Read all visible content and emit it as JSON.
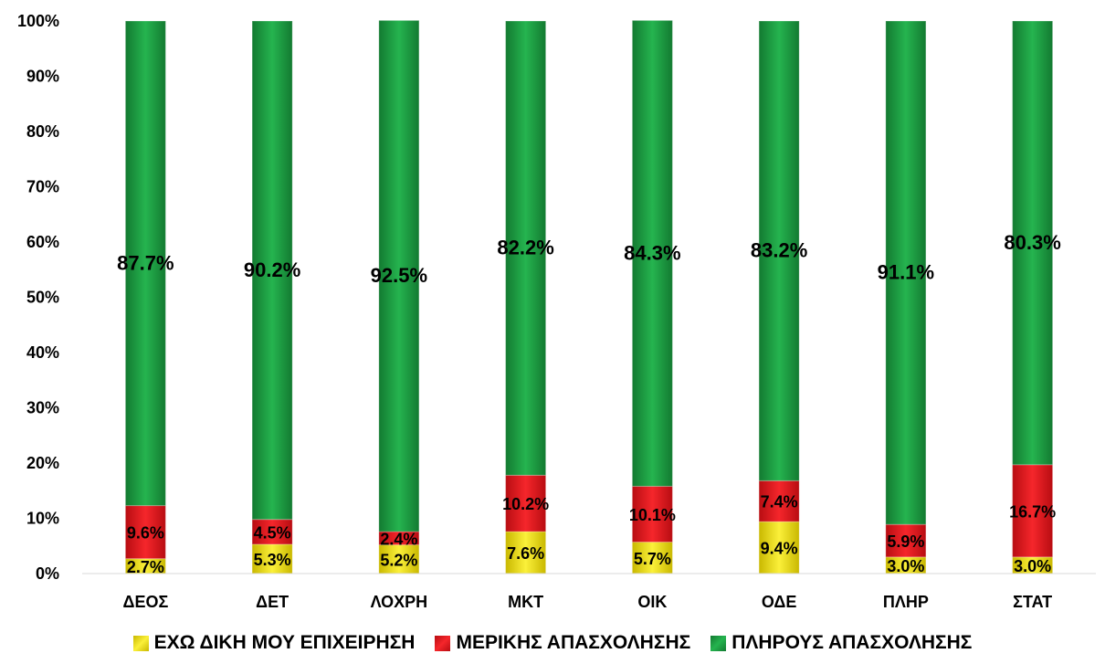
{
  "chart_data": {
    "type": "bar",
    "stacked": true,
    "orientation": "vertical",
    "categories": [
      "ΔΕΟΣ",
      "ΔΕΤ",
      "ΛΟΧΡΗ",
      "ΜΚΤ",
      "ΟΙΚ",
      "ΟΔΕ",
      "ΠΛΗΡ",
      "ΣΤΑΤ"
    ],
    "series": [
      {
        "name": "ΕΧΩ ΔΙΚΗ ΜΟΥ ΕΠΙΧΕΙΡΗΣΗ",
        "color": "#f2e21d",
        "values": [
          2.7,
          5.3,
          5.2,
          7.6,
          5.7,
          9.4,
          3.0,
          3.0
        ],
        "labels": [
          "2.7%",
          "5.3%",
          "5.2%",
          "7.6%",
          "5.7%",
          "9.4%",
          "3.0%",
          "3.0%"
        ]
      },
      {
        "name": "ΜΕΡΙΚΗΣ ΑΠΑΣΧΟΛΗΣΗΣ",
        "color": "#e8161c",
        "values": [
          9.6,
          4.5,
          2.4,
          10.2,
          10.1,
          7.4,
          5.9,
          16.7
        ],
        "labels": [
          "9.6%",
          "4.5%",
          "2.4%",
          "10.2%",
          "10.1%",
          "7.4%",
          "5.9%",
          "16.7%"
        ]
      },
      {
        "name": "ΠΛΗΡΟΥΣ ΑΠΑΣΧΟΛΗΣΗΣ",
        "color": "#1fa546",
        "values": [
          87.7,
          90.2,
          92.5,
          82.2,
          84.3,
          83.2,
          91.1,
          80.3
        ],
        "labels": [
          "87.7%",
          "90.2%",
          "92.5%",
          "82.2%",
          "84.3%",
          "83.2%",
          "91.1%",
          "80.3%"
        ]
      }
    ],
    "yticks": [
      "0%",
      "10%",
      "20%",
      "30%",
      "40%",
      "50%",
      "60%",
      "70%",
      "80%",
      "90%",
      "100%"
    ],
    "ylim": [
      0,
      100
    ],
    "grid": false,
    "legend_position": "bottom",
    "title": "",
    "xlabel": "",
    "ylabel": ""
  }
}
